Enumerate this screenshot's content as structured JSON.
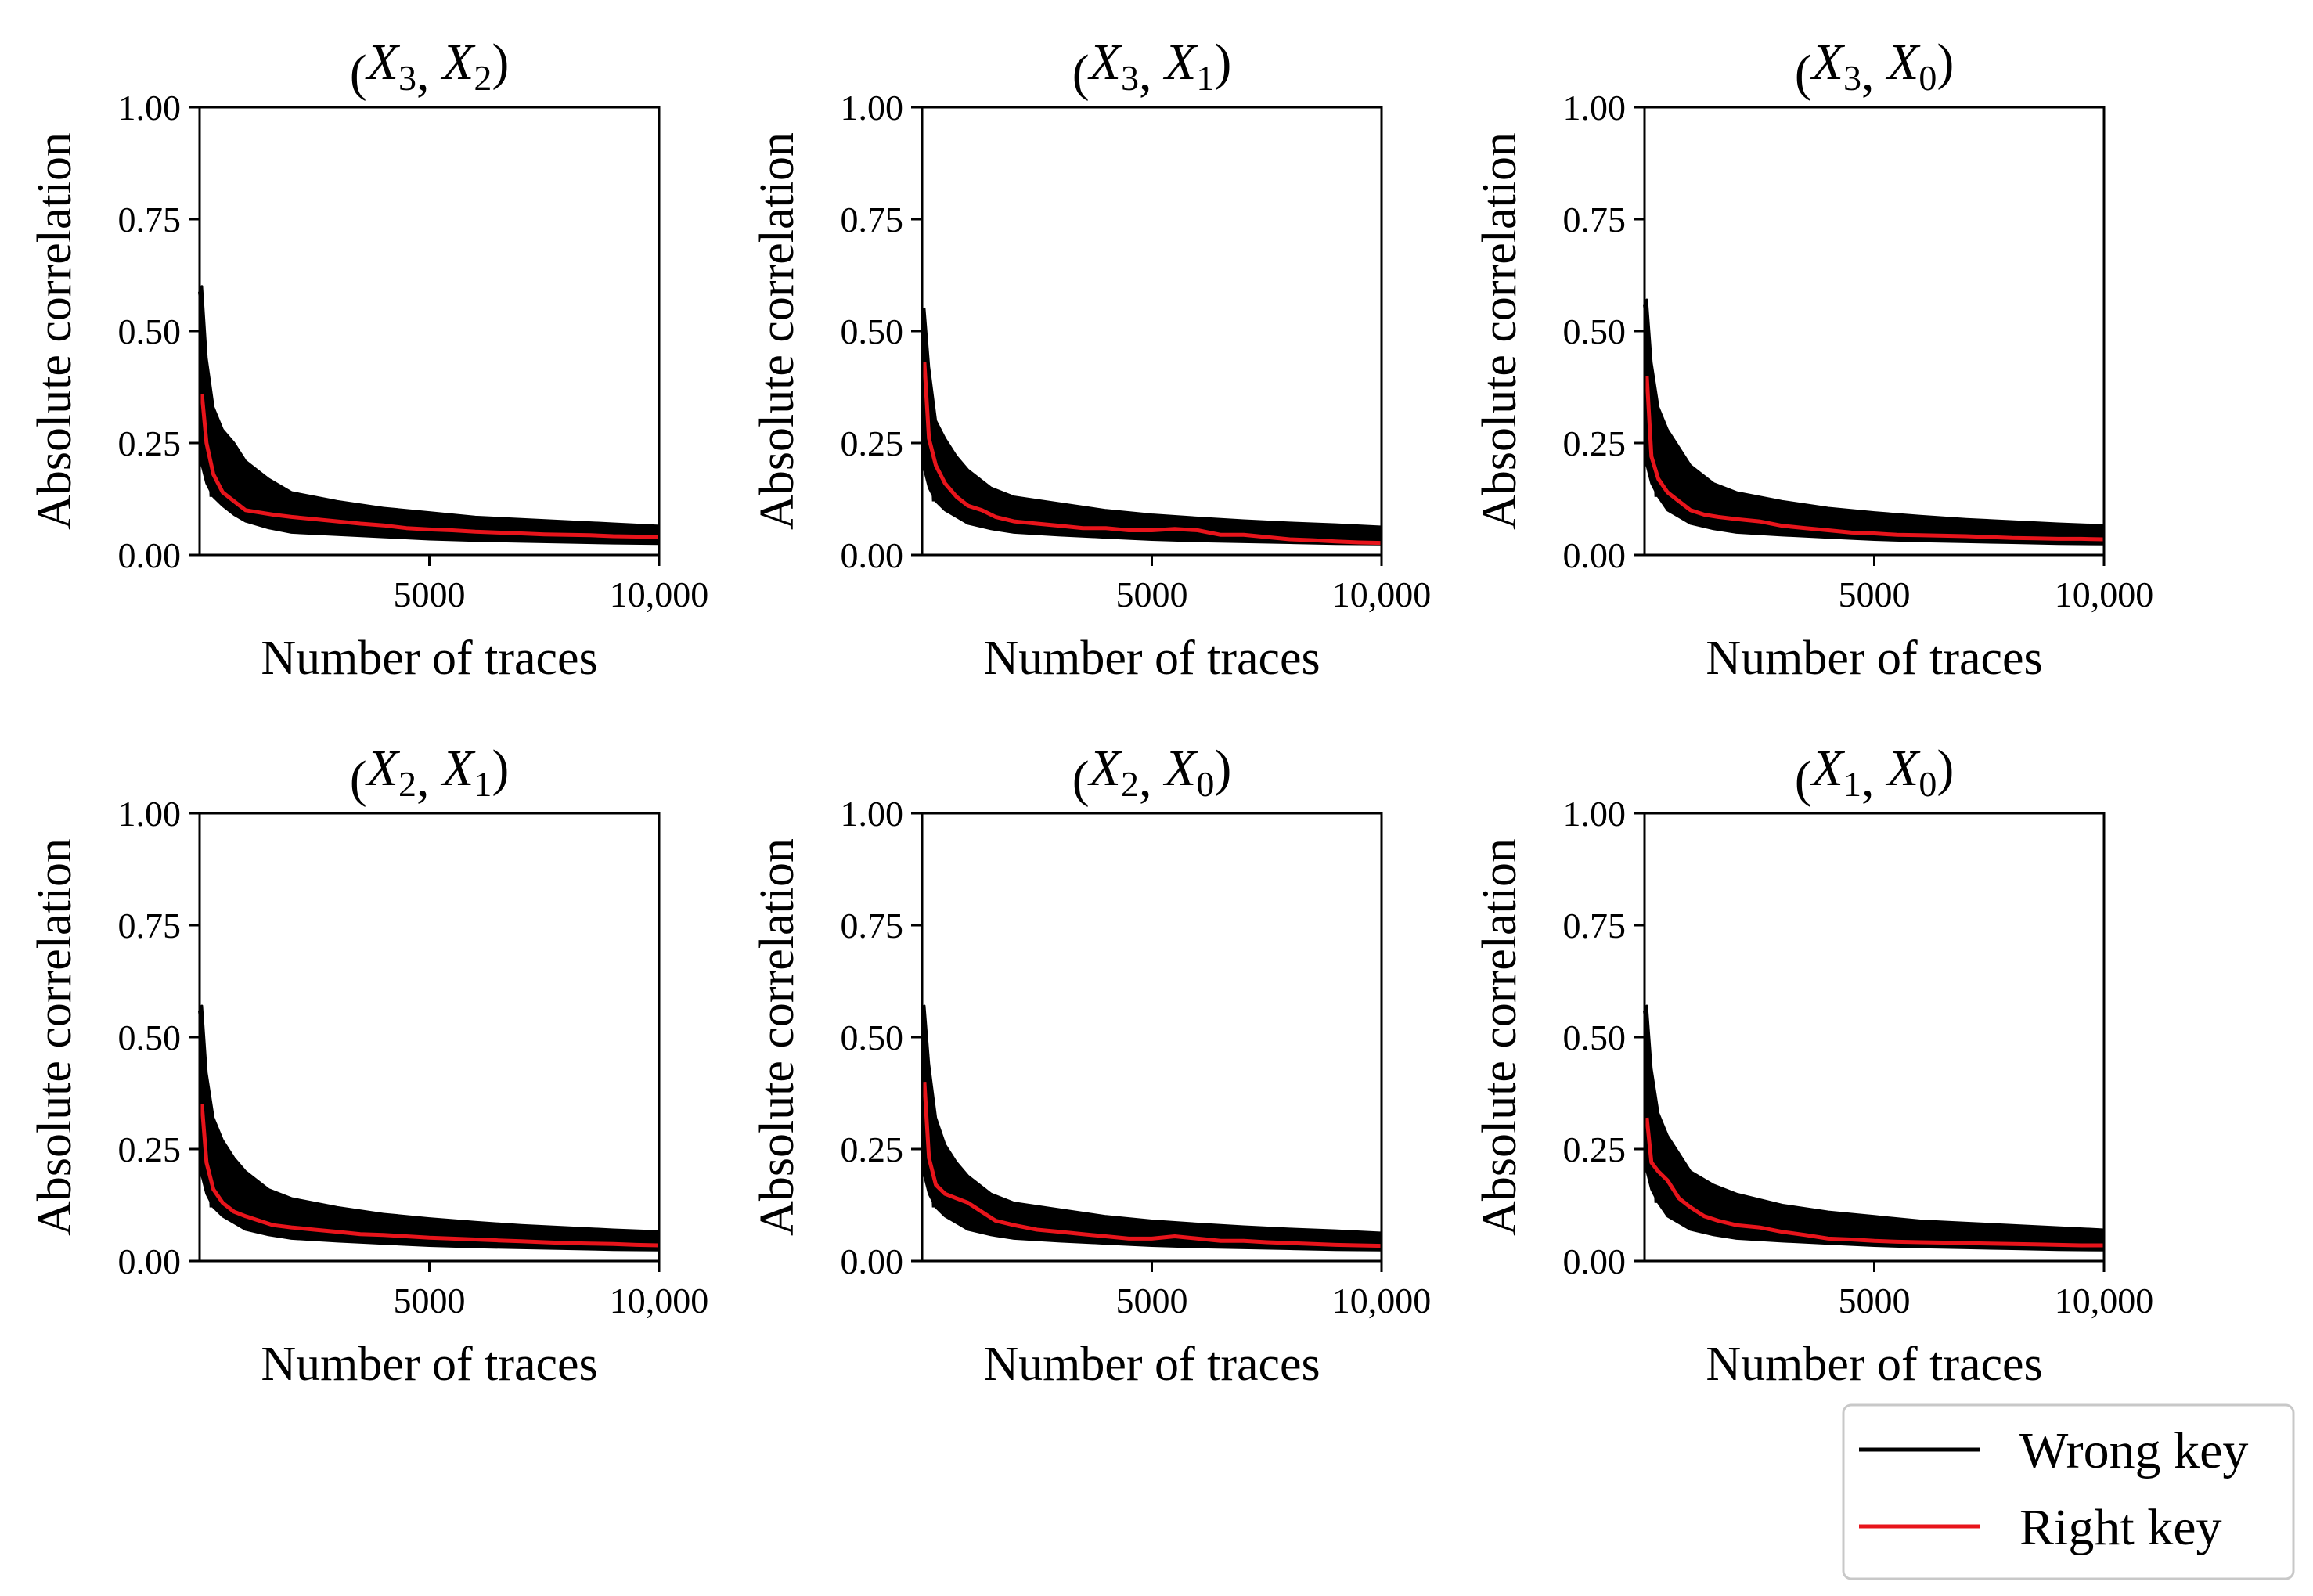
{
  "chart_data": [
    {
      "type": "line",
      "title": {
        "var1": "X",
        "sub1": "3",
        "var2": "X",
        "sub2": "2"
      },
      "xlabel": "Number of traces",
      "ylabel": "Absolute correlation",
      "xlim": [
        0,
        10000
      ],
      "ylim": [
        0,
        1
      ],
      "xticks": [
        {
          "value": 5000,
          "label": "5000"
        },
        {
          "value": 10000,
          "label": "10,000"
        }
      ],
      "yticks": [
        {
          "value": 0,
          "label": "0.00"
        },
        {
          "value": 0.25,
          "label": "0.25"
        },
        {
          "value": 0.5,
          "label": "0.50"
        },
        {
          "value": 0.75,
          "label": "0.75"
        },
        {
          "value": 1,
          "label": "1.00"
        }
      ],
      "wrong_key_band": {
        "x": [
          50,
          150,
          300,
          500,
          750,
          1000,
          1500,
          2000,
          3000,
          4000,
          5000,
          6000,
          7000,
          8000,
          9000,
          10000
        ],
        "upper": [
          0.6,
          0.44,
          0.33,
          0.28,
          0.25,
          0.21,
          0.17,
          0.14,
          0.12,
          0.105,
          0.095,
          0.085,
          0.08,
          0.075,
          0.07,
          0.065
        ],
        "lower": [
          0.2,
          0.16,
          0.13,
          0.11,
          0.09,
          0.075,
          0.06,
          0.05,
          0.045,
          0.04,
          0.035,
          0.032,
          0.03,
          0.028,
          0.026,
          0.025
        ]
      },
      "series": [
        {
          "name": "Right key",
          "x": [
            50,
            150,
            300,
            500,
            750,
            1000,
            1300,
            1600,
            2000,
            2500,
            3000,
            3500,
            4000,
            4500,
            5000,
            5500,
            6000,
            6500,
            7000,
            7500,
            8000,
            8500,
            9000,
            9500,
            10000
          ],
          "values": [
            0.36,
            0.25,
            0.18,
            0.14,
            0.12,
            0.1,
            0.095,
            0.09,
            0.085,
            0.08,
            0.075,
            0.07,
            0.066,
            0.06,
            0.057,
            0.055,
            0.052,
            0.05,
            0.048,
            0.046,
            0.045,
            0.044,
            0.042,
            0.041,
            0.04
          ]
        }
      ]
    },
    {
      "type": "line",
      "title": {
        "var1": "X",
        "sub1": "3",
        "var2": "X",
        "sub2": "1"
      },
      "xlabel": "Number of traces",
      "ylabel": "Absolute correlation",
      "xlim": [
        0,
        10000
      ],
      "ylim": [
        0,
        1
      ],
      "xticks": [
        {
          "value": 5000,
          "label": "5000"
        },
        {
          "value": 10000,
          "label": "10,000"
        }
      ],
      "yticks": [
        {
          "value": 0,
          "label": "0.00"
        },
        {
          "value": 0.25,
          "label": "0.25"
        },
        {
          "value": 0.5,
          "label": "0.50"
        },
        {
          "value": 0.75,
          "label": "0.75"
        },
        {
          "value": 1,
          "label": "1.00"
        }
      ],
      "wrong_key_band": {
        "x": [
          50,
          150,
          300,
          500,
          750,
          1000,
          1500,
          2000,
          3000,
          4000,
          5000,
          6000,
          7000,
          8000,
          9000,
          10000
        ],
        "upper": [
          0.55,
          0.42,
          0.3,
          0.26,
          0.22,
          0.19,
          0.15,
          0.13,
          0.115,
          0.1,
          0.09,
          0.083,
          0.077,
          0.072,
          0.068,
          0.063
        ],
        "lower": [
          0.19,
          0.15,
          0.12,
          0.1,
          0.085,
          0.07,
          0.058,
          0.05,
          0.044,
          0.039,
          0.034,
          0.031,
          0.029,
          0.027,
          0.025,
          0.024
        ]
      },
      "series": [
        {
          "name": "Right key",
          "x": [
            50,
            150,
            300,
            500,
            750,
            1000,
            1300,
            1600,
            2000,
            2500,
            3000,
            3500,
            4000,
            4500,
            5000,
            5500,
            6000,
            6500,
            7000,
            7500,
            8000,
            8500,
            9000,
            9500,
            10000
          ],
          "values": [
            0.43,
            0.26,
            0.2,
            0.16,
            0.13,
            0.11,
            0.1,
            0.085,
            0.075,
            0.07,
            0.065,
            0.06,
            0.06,
            0.055,
            0.055,
            0.058,
            0.055,
            0.045,
            0.045,
            0.04,
            0.035,
            0.033,
            0.03,
            0.028,
            0.027
          ]
        }
      ]
    },
    {
      "type": "line",
      "title": {
        "var1": "X",
        "sub1": "3",
        "var2": "X",
        "sub2": "0"
      },
      "xlabel": "Number of traces",
      "ylabel": "Absolute correlation",
      "xlim": [
        0,
        10000
      ],
      "ylim": [
        0,
        1
      ],
      "xticks": [
        {
          "value": 5000,
          "label": "5000"
        },
        {
          "value": 10000,
          "label": "10,000"
        }
      ],
      "yticks": [
        {
          "value": 0,
          "label": "0.00"
        },
        {
          "value": 0.25,
          "label": "0.25"
        },
        {
          "value": 0.5,
          "label": "0.50"
        },
        {
          "value": 0.75,
          "label": "0.75"
        },
        {
          "value": 1,
          "label": "1.00"
        }
      ],
      "wrong_key_band": {
        "x": [
          50,
          150,
          300,
          500,
          750,
          1000,
          1500,
          2000,
          3000,
          4000,
          5000,
          6000,
          7000,
          8000,
          9000,
          10000
        ],
        "upper": [
          0.57,
          0.43,
          0.33,
          0.28,
          0.24,
          0.2,
          0.16,
          0.14,
          0.12,
          0.105,
          0.095,
          0.087,
          0.08,
          0.075,
          0.07,
          0.066
        ],
        "lower": [
          0.2,
          0.16,
          0.13,
          0.1,
          0.085,
          0.07,
          0.058,
          0.05,
          0.044,
          0.039,
          0.034,
          0.031,
          0.029,
          0.027,
          0.025,
          0.024
        ]
      },
      "series": [
        {
          "name": "Right key",
          "x": [
            50,
            150,
            300,
            500,
            750,
            1000,
            1300,
            1600,
            2000,
            2500,
            3000,
            3500,
            4000,
            4500,
            5000,
            5500,
            6000,
            6500,
            7000,
            7500,
            8000,
            8500,
            9000,
            9500,
            10000
          ],
          "values": [
            0.4,
            0.22,
            0.17,
            0.14,
            0.12,
            0.1,
            0.09,
            0.085,
            0.08,
            0.075,
            0.065,
            0.06,
            0.055,
            0.05,
            0.048,
            0.045,
            0.044,
            0.043,
            0.042,
            0.04,
            0.038,
            0.037,
            0.036,
            0.036,
            0.035
          ]
        }
      ]
    },
    {
      "type": "line",
      "title": {
        "var1": "X",
        "sub1": "2",
        "var2": "X",
        "sub2": "1"
      },
      "xlabel": "Number of traces",
      "ylabel": "Absolute correlation",
      "xlim": [
        0,
        10000
      ],
      "ylim": [
        0,
        1
      ],
      "xticks": [
        {
          "value": 5000,
          "label": "5000"
        },
        {
          "value": 10000,
          "label": "10,000"
        }
      ],
      "yticks": [
        {
          "value": 0,
          "label": "0.00"
        },
        {
          "value": 0.25,
          "label": "0.25"
        },
        {
          "value": 0.5,
          "label": "0.50"
        },
        {
          "value": 0.75,
          "label": "0.75"
        },
        {
          "value": 1,
          "label": "1.00"
        }
      ],
      "wrong_key_band": {
        "x": [
          50,
          150,
          300,
          500,
          750,
          1000,
          1500,
          2000,
          3000,
          4000,
          5000,
          6000,
          7000,
          8000,
          9000,
          10000
        ],
        "upper": [
          0.57,
          0.42,
          0.32,
          0.27,
          0.23,
          0.2,
          0.16,
          0.14,
          0.12,
          0.105,
          0.095,
          0.087,
          0.08,
          0.075,
          0.07,
          0.066
        ],
        "lower": [
          0.19,
          0.15,
          0.12,
          0.1,
          0.085,
          0.07,
          0.058,
          0.05,
          0.044,
          0.039,
          0.034,
          0.031,
          0.029,
          0.027,
          0.025,
          0.024
        ]
      },
      "series": [
        {
          "name": "Right key",
          "x": [
            50,
            150,
            300,
            500,
            750,
            1000,
            1300,
            1600,
            2000,
            2500,
            3000,
            3500,
            4000,
            4500,
            5000,
            5500,
            6000,
            6500,
            7000,
            7500,
            8000,
            8500,
            9000,
            9500,
            10000
          ],
          "values": [
            0.35,
            0.22,
            0.16,
            0.13,
            0.11,
            0.1,
            0.09,
            0.08,
            0.075,
            0.07,
            0.065,
            0.06,
            0.058,
            0.055,
            0.052,
            0.05,
            0.048,
            0.046,
            0.044,
            0.042,
            0.04,
            0.039,
            0.038,
            0.036,
            0.035
          ]
        }
      ]
    },
    {
      "type": "line",
      "title": {
        "var1": "X",
        "sub1": "2",
        "var2": "X",
        "sub2": "0"
      },
      "xlabel": "Number of traces",
      "ylabel": "Absolute correlation",
      "xlim": [
        0,
        10000
      ],
      "ylim": [
        0,
        1
      ],
      "xticks": [
        {
          "value": 5000,
          "label": "5000"
        },
        {
          "value": 10000,
          "label": "10,000"
        }
      ],
      "yticks": [
        {
          "value": 0,
          "label": "0.00"
        },
        {
          "value": 0.25,
          "label": "0.25"
        },
        {
          "value": 0.5,
          "label": "0.50"
        },
        {
          "value": 0.75,
          "label": "0.75"
        },
        {
          "value": 1,
          "label": "1.00"
        }
      ],
      "wrong_key_band": {
        "x": [
          50,
          150,
          300,
          500,
          750,
          1000,
          1500,
          2000,
          3000,
          4000,
          5000,
          6000,
          7000,
          8000,
          9000,
          10000
        ],
        "upper": [
          0.57,
          0.44,
          0.32,
          0.26,
          0.22,
          0.19,
          0.15,
          0.13,
          0.115,
          0.1,
          0.09,
          0.083,
          0.077,
          0.072,
          0.068,
          0.063
        ],
        "lower": [
          0.19,
          0.15,
          0.12,
          0.1,
          0.085,
          0.07,
          0.058,
          0.05,
          0.044,
          0.039,
          0.034,
          0.031,
          0.029,
          0.027,
          0.025,
          0.024
        ]
      },
      "series": [
        {
          "name": "Right key",
          "x": [
            50,
            150,
            300,
            500,
            750,
            1000,
            1300,
            1600,
            2000,
            2500,
            3000,
            3500,
            4000,
            4500,
            5000,
            5500,
            6000,
            6500,
            7000,
            7500,
            8000,
            8500,
            9000,
            9500,
            10000
          ],
          "values": [
            0.4,
            0.23,
            0.17,
            0.15,
            0.14,
            0.13,
            0.11,
            0.09,
            0.08,
            0.07,
            0.065,
            0.06,
            0.055,
            0.05,
            0.05,
            0.055,
            0.05,
            0.045,
            0.045,
            0.042,
            0.04,
            0.038,
            0.036,
            0.035,
            0.034
          ]
        }
      ]
    },
    {
      "type": "line",
      "title": {
        "var1": "X",
        "sub1": "1",
        "var2": "X",
        "sub2": "0"
      },
      "xlabel": "Number of traces",
      "ylabel": "Absolute correlation",
      "xlim": [
        0,
        10000
      ],
      "ylim": [
        0,
        1
      ],
      "xticks": [
        {
          "value": 5000,
          "label": "5000"
        },
        {
          "value": 10000,
          "label": "10,000"
        }
      ],
      "yticks": [
        {
          "value": 0,
          "label": "0.00"
        },
        {
          "value": 0.25,
          "label": "0.25"
        },
        {
          "value": 0.5,
          "label": "0.50"
        },
        {
          "value": 0.75,
          "label": "0.75"
        },
        {
          "value": 1,
          "label": "1.00"
        }
      ],
      "wrong_key_band": {
        "x": [
          50,
          150,
          300,
          500,
          750,
          1000,
          1500,
          2000,
          3000,
          4000,
          5000,
          6000,
          7000,
          8000,
          9000,
          10000
        ],
        "upper": [
          0.57,
          0.43,
          0.33,
          0.28,
          0.24,
          0.2,
          0.17,
          0.15,
          0.125,
          0.11,
          0.1,
          0.09,
          0.085,
          0.08,
          0.075,
          0.07
        ],
        "lower": [
          0.2,
          0.16,
          0.13,
          0.1,
          0.085,
          0.07,
          0.058,
          0.05,
          0.044,
          0.039,
          0.034,
          0.031,
          0.029,
          0.027,
          0.025,
          0.024
        ]
      },
      "series": [
        {
          "name": "Right key",
          "x": [
            50,
            150,
            300,
            500,
            750,
            1000,
            1300,
            1600,
            2000,
            2500,
            3000,
            3500,
            4000,
            4500,
            5000,
            5500,
            6000,
            6500,
            7000,
            7500,
            8000,
            8500,
            9000,
            9500,
            10000
          ],
          "values": [
            0.32,
            0.22,
            0.2,
            0.18,
            0.14,
            0.12,
            0.1,
            0.09,
            0.08,
            0.075,
            0.065,
            0.058,
            0.05,
            0.048,
            0.045,
            0.043,
            0.042,
            0.041,
            0.04,
            0.039,
            0.038,
            0.037,
            0.036,
            0.035,
            0.035
          ]
        }
      ]
    }
  ],
  "legend": {
    "placement": "bottom-right",
    "entries": [
      {
        "label": "Wrong key",
        "color": "#000000"
      },
      {
        "label": "Right key",
        "color": "#e8141b"
      }
    ]
  },
  "colors": {
    "wrong_key": "#000000",
    "right_key": "#e8141b",
    "axes": "#000000"
  }
}
